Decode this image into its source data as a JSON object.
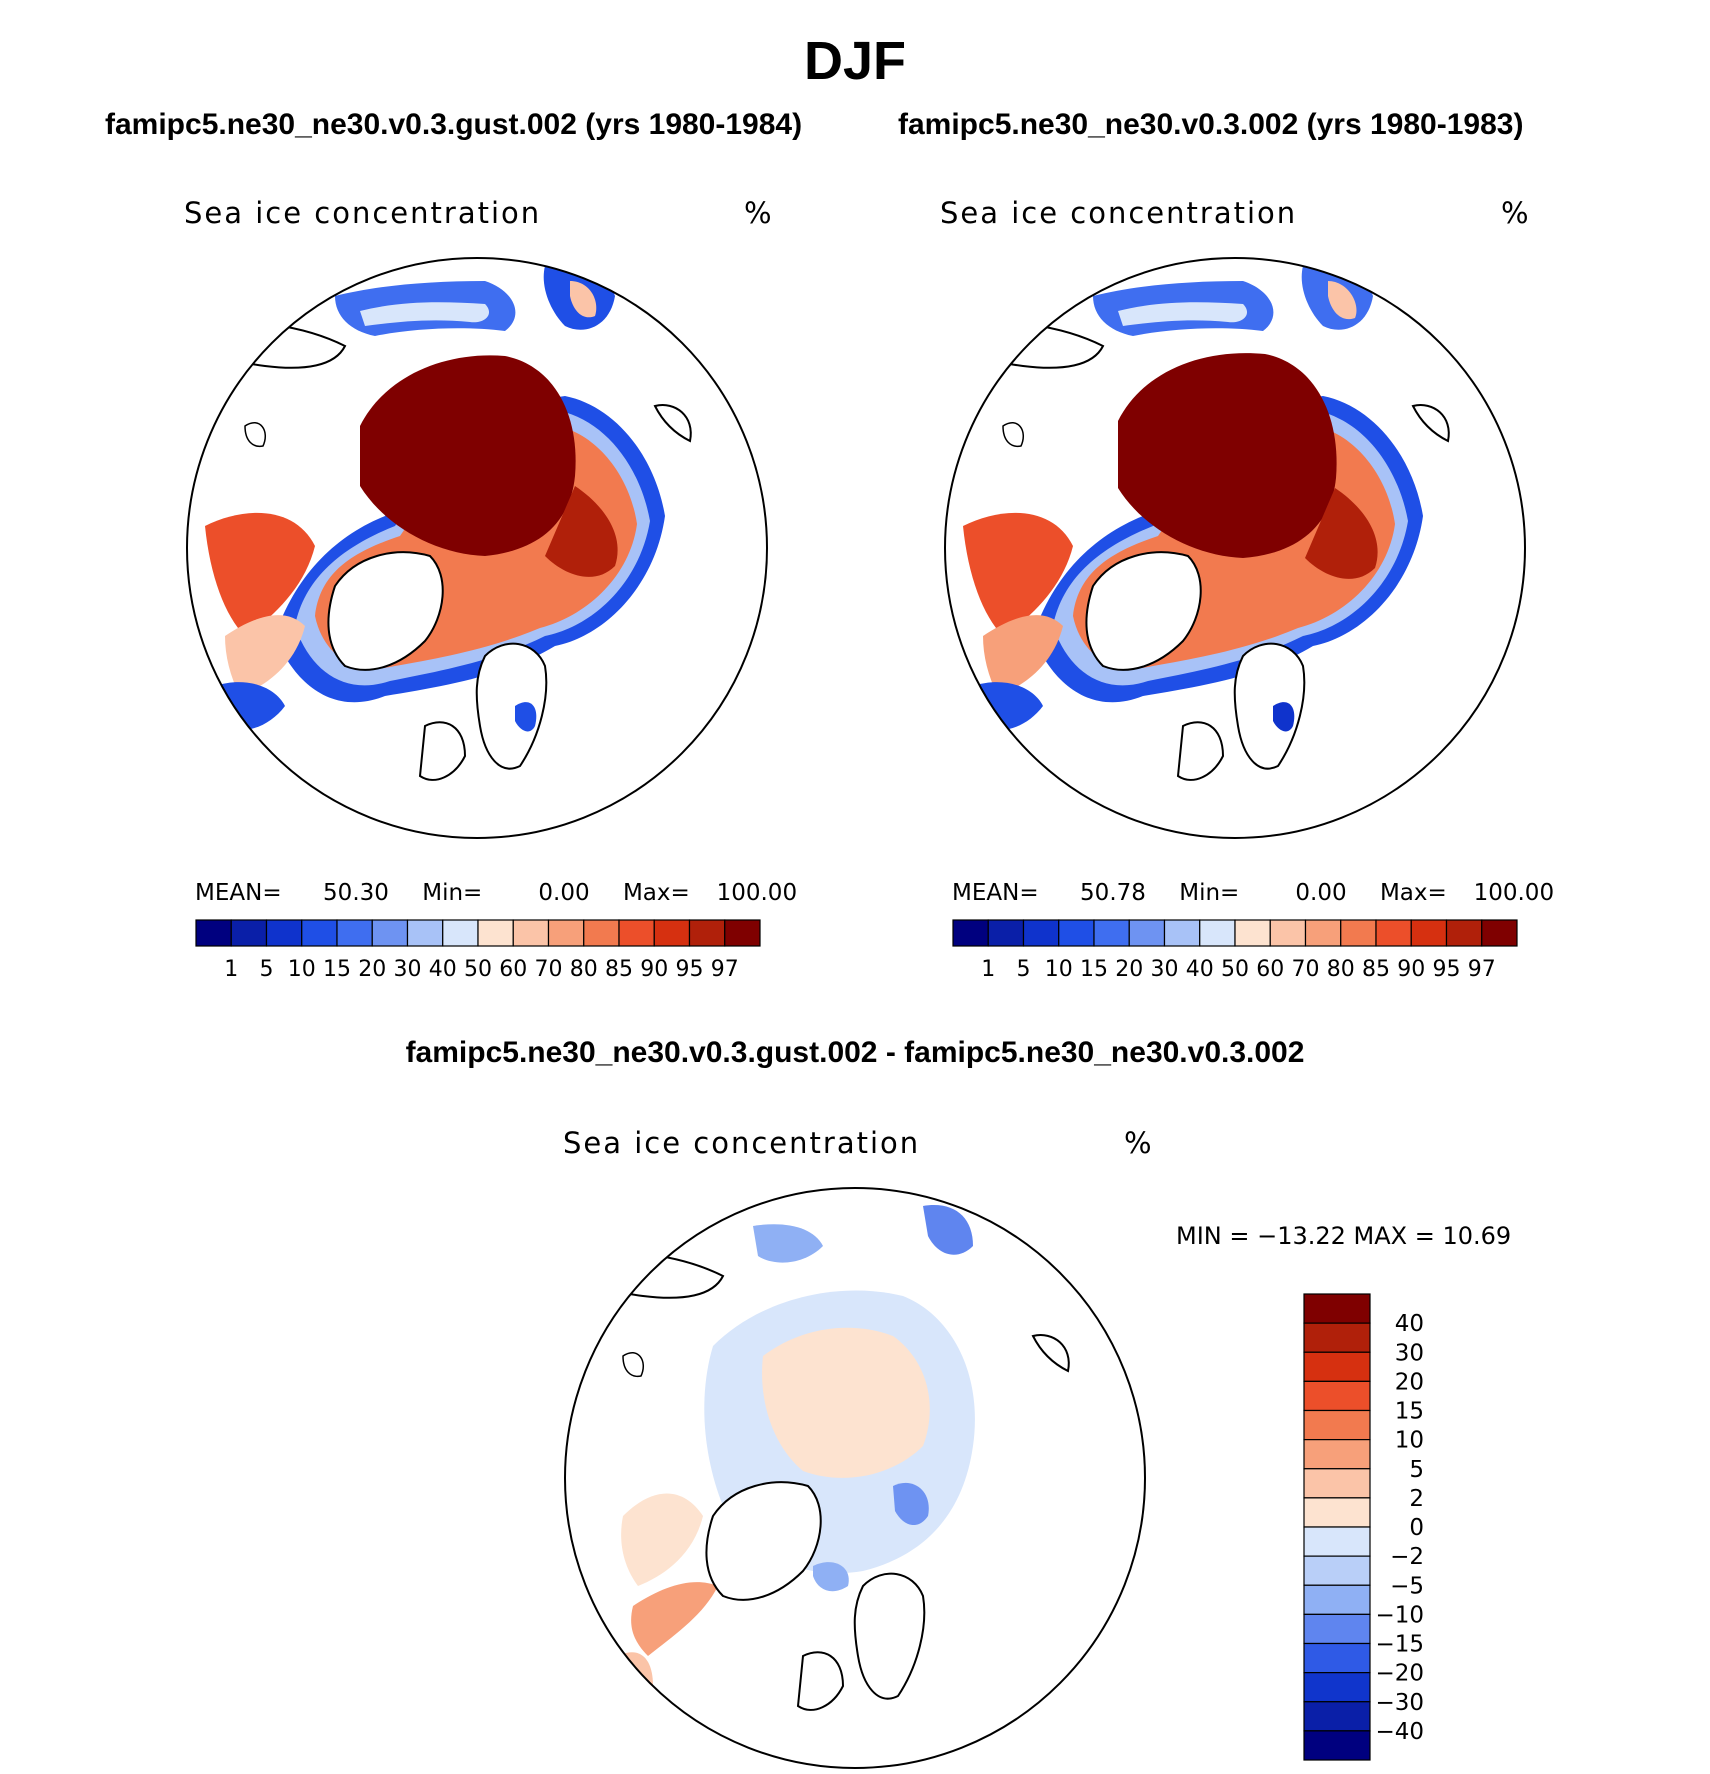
{
  "title": "DJF",
  "panels": [
    {
      "case_title": "famipc5.ne30_ne30.v0.3.gust.002 (yrs 1980-1984)",
      "field": "Sea ice concentration",
      "units": "%",
      "stats": {
        "mean_label": "MEAN=",
        "mean": "50.30",
        "min_label": "Min=",
        "min": "0.00",
        "max_label": "Max=",
        "max": "100.00"
      }
    },
    {
      "case_title": "famipc5.ne30_ne30.v0.3.002 (yrs 1980-1983)",
      "field": "Sea ice concentration",
      "units": "%",
      "stats": {
        "mean_label": "MEAN=",
        "mean": "50.78",
        "min_label": "Min=",
        "min": "0.00",
        "max_label": "Max=",
        "max": "100.00"
      }
    }
  ],
  "diff": {
    "title": "famipc5.ne30_ne30.v0.3.gust.002 - famipc5.ne30_ne30.v0.3.002",
    "field": "Sea ice concentration",
    "units": "%",
    "minmax": "MIN = −13.22 MAX =   10.69"
  },
  "chart_data": [
    {
      "type": "heatmap",
      "projection": "north polar stereographic",
      "title": "famipc5.ne30_ne30.v0.3.gust.002 (yrs 1980-1984)",
      "field": "Sea ice concentration",
      "units": "%",
      "mean": 50.3,
      "min": 0.0,
      "max": 100.0,
      "contour_levels": [
        "1",
        "5",
        "10",
        "15",
        "20",
        "30",
        "40",
        "50",
        "60",
        "70",
        "80",
        "85",
        "90",
        "95",
        "97"
      ],
      "colors": [
        "#00007f",
        "#0a1fa8",
        "#0f33cc",
        "#1f4fe6",
        "#3f6ef0",
        "#6e93f2",
        "#a8c2f7",
        "#d8e6fb",
        "#fde3d0",
        "#fbc4a8",
        "#f7a07a",
        "#f27a4f",
        "#ec4f2a",
        "#d63010",
        "#b0200a",
        "#7f0000"
      ]
    },
    {
      "type": "heatmap",
      "projection": "north polar stereographic",
      "title": "famipc5.ne30_ne30.v0.3.002 (yrs 1980-1983)",
      "field": "Sea ice concentration",
      "units": "%",
      "mean": 50.78,
      "min": 0.0,
      "max": 100.0,
      "contour_levels": [
        "1",
        "5",
        "10",
        "15",
        "20",
        "30",
        "40",
        "50",
        "60",
        "70",
        "80",
        "85",
        "90",
        "95",
        "97"
      ],
      "colors": [
        "#00007f",
        "#0a1fa8",
        "#0f33cc",
        "#1f4fe6",
        "#3f6ef0",
        "#6e93f2",
        "#a8c2f7",
        "#d8e6fb",
        "#fde3d0",
        "#fbc4a8",
        "#f7a07a",
        "#f27a4f",
        "#ec4f2a",
        "#d63010",
        "#b0200a",
        "#7f0000"
      ]
    },
    {
      "type": "heatmap",
      "projection": "north polar stereographic",
      "title": "famipc5.ne30_ne30.v0.3.gust.002 - famipc5.ne30_ne30.v0.3.002",
      "field": "Sea ice concentration",
      "units": "%",
      "min": -13.22,
      "max": 10.69,
      "contour_levels": [
        "40",
        "30",
        "20",
        "15",
        "10",
        "5",
        "2",
        "0",
        "−2",
        "−5",
        "−10",
        "−15",
        "−20",
        "−30",
        "−40"
      ],
      "colors": [
        "#7f0000",
        "#b0200a",
        "#d63010",
        "#ec4f2a",
        "#f27a4f",
        "#f7a07a",
        "#fbc4a8",
        "#fde3d0",
        "#d8e6fb",
        "#b9cff8",
        "#8fb0f4",
        "#5f85ef",
        "#2f5ae6",
        "#1035cc",
        "#0a1fa8",
        "#00007f"
      ]
    }
  ]
}
